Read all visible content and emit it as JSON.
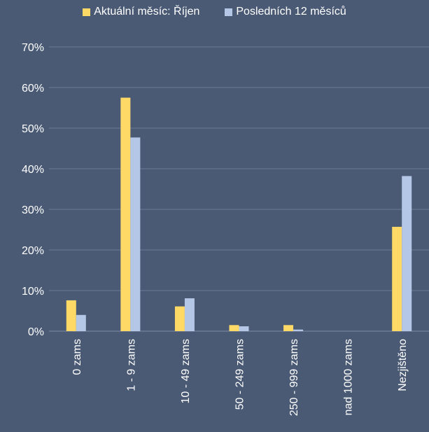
{
  "chart_data": {
    "type": "bar",
    "title": "",
    "xlabel": "",
    "ylabel": "",
    "ylim": [
      0,
      70
    ],
    "yticks": [
      "0%",
      "10%",
      "20%",
      "30%",
      "40%",
      "50%",
      "60%",
      "70%"
    ],
    "grid": true,
    "legend_position": "top",
    "categories": [
      "0 zams",
      "1 - 9 zams",
      "10 - 49 zams",
      "50 - 249 zams",
      "250 - 999 zams",
      "nad 1000 zams",
      "Nezjištěno"
    ],
    "series": [
      {
        "name": "Aktuální měsíc: Říjen",
        "color": "#ffd966",
        "values": [
          7.6,
          57.5,
          6.1,
          1.5,
          1.5,
          0,
          25.7
        ]
      },
      {
        "name": "Posledních 12 měsíců",
        "color": "#b4c7e7",
        "values": [
          4.0,
          47.7,
          8.1,
          1.2,
          0.4,
          0,
          38.2
        ]
      }
    ]
  },
  "colors": {
    "background": "#4a5a75",
    "gridline": "#6a7a93",
    "text": "#ffffff"
  }
}
